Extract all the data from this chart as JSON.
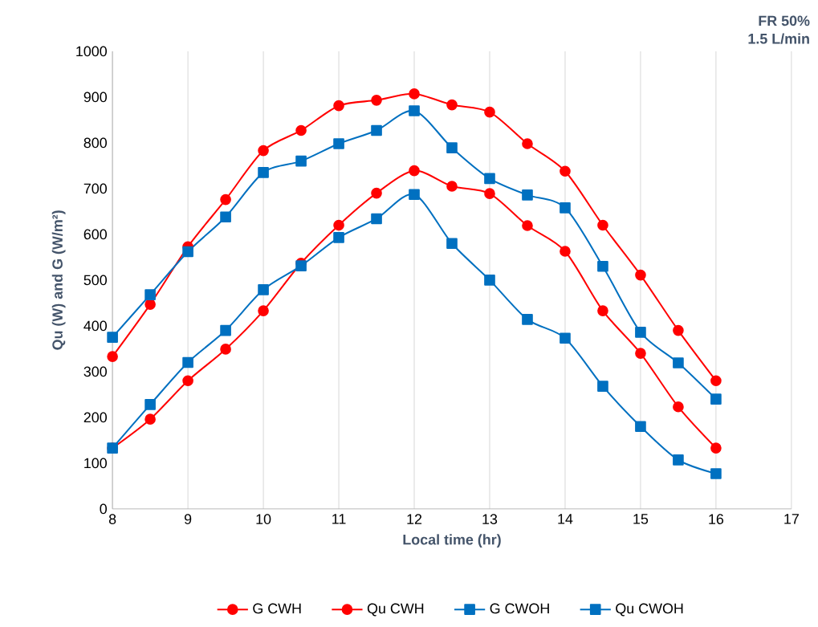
{
  "chart_data": {
    "type": "line",
    "xlabel": "Local time (hr)",
    "ylabel": "Qu (W) and G (W/m²)",
    "annotations": [
      "FR 50%",
      "1.5 L/min"
    ],
    "x": [
      8,
      8.5,
      9,
      9.5,
      10,
      10.5,
      11,
      11.5,
      12,
      12.5,
      13,
      13.5,
      14,
      14.5,
      15,
      15.5,
      16
    ],
    "xlim": [
      8,
      17
    ],
    "xticks": [
      8,
      9,
      10,
      11,
      12,
      13,
      14,
      15,
      16,
      17
    ],
    "ylim": [
      0,
      1000
    ],
    "yticks": [
      0,
      100,
      200,
      300,
      400,
      500,
      600,
      700,
      800,
      900,
      1000
    ],
    "grid": "x",
    "legend": "bottom",
    "line_style": "solid",
    "series": [
      {
        "name": "G CWH",
        "color": "#ff0000",
        "marker": "circle",
        "values": [
          333,
          447,
          573,
          676,
          783,
          827,
          881,
          893,
          907,
          883,
          867,
          798,
          738,
          620,
          511,
          390,
          280
        ]
      },
      {
        "name": "Qu CWH",
        "color": "#ff0000",
        "marker": "circle",
        "values": [
          133,
          196,
          280,
          349,
          433,
          537,
          620,
          690,
          739,
          705,
          689,
          619,
          563,
          433,
          340,
          223,
          133
        ]
      },
      {
        "name": "G CWOH",
        "color": "#0070c0",
        "marker": "square",
        "values": [
          375,
          468,
          562,
          638,
          735,
          760,
          798,
          827,
          870,
          789,
          722,
          686,
          658,
          530,
          386,
          319,
          240
        ]
      },
      {
        "name": "Qu CWOH",
        "color": "#0070c0",
        "marker": "square",
        "values": [
          133,
          228,
          320,
          390,
          479,
          531,
          593,
          634,
          687,
          580,
          500,
          414,
          373,
          268,
          180,
          107,
          77
        ]
      }
    ]
  }
}
